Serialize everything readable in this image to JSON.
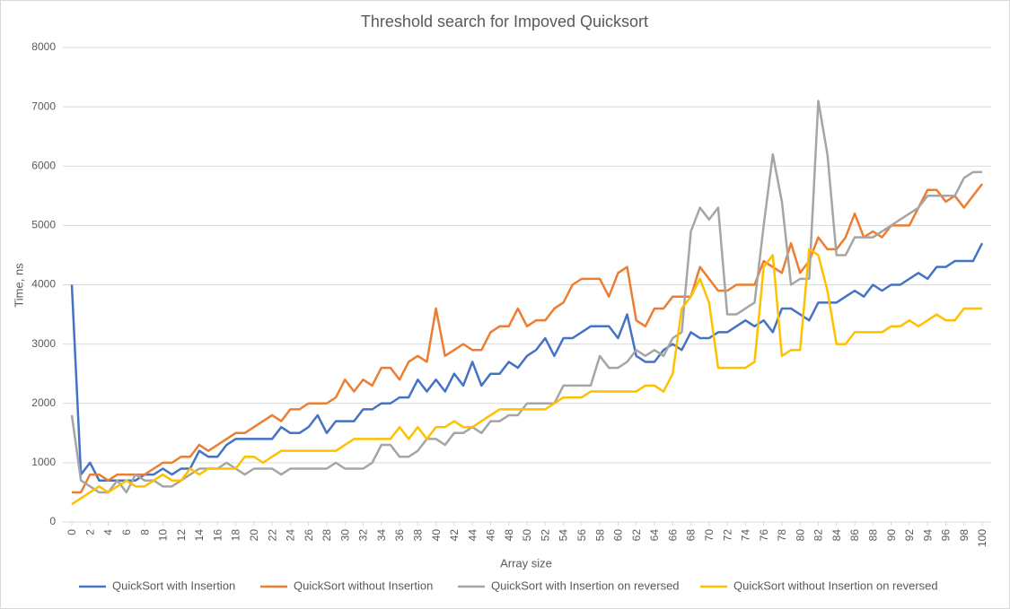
{
  "chart_data": {
    "type": "line",
    "title": "Threshold search for Impoved Quicksort",
    "x_label": "Array size",
    "y_label": "Time, ns",
    "x": [
      0,
      1,
      2,
      3,
      4,
      5,
      6,
      7,
      8,
      9,
      10,
      11,
      12,
      13,
      14,
      15,
      16,
      17,
      18,
      19,
      20,
      21,
      22,
      23,
      24,
      25,
      26,
      27,
      28,
      29,
      30,
      31,
      32,
      33,
      34,
      35,
      36,
      37,
      38,
      39,
      40,
      41,
      42,
      43,
      44,
      45,
      46,
      47,
      48,
      49,
      50,
      51,
      52,
      53,
      54,
      55,
      56,
      57,
      58,
      59,
      60,
      61,
      62,
      63,
      64,
      65,
      66,
      67,
      68,
      69,
      70,
      71,
      72,
      73,
      74,
      75,
      76,
      77,
      78,
      79,
      80,
      81,
      82,
      83,
      84,
      85,
      86,
      87,
      88,
      89,
      90,
      91,
      92,
      93,
      94,
      95,
      96,
      97,
      98,
      99,
      100
    ],
    "xlim": [
      0,
      100
    ],
    "xticks": [
      0,
      2,
      4,
      6,
      8,
      10,
      12,
      14,
      16,
      18,
      20,
      22,
      24,
      26,
      28,
      30,
      32,
      34,
      36,
      38,
      40,
      42,
      44,
      46,
      48,
      50,
      52,
      54,
      56,
      58,
      60,
      62,
      64,
      66,
      68,
      70,
      72,
      74,
      76,
      78,
      80,
      82,
      84,
      86,
      88,
      90,
      92,
      94,
      96,
      98,
      100
    ],
    "ylim": [
      0,
      8000
    ],
    "yticks": [
      0,
      1000,
      2000,
      3000,
      4000,
      5000,
      6000,
      7000,
      8000
    ],
    "grid": true,
    "legend": "bottom",
    "series": [
      {
        "name": "QuickSort with Insertion",
        "color": "#4472c4",
        "values": [
          4000,
          800,
          1000,
          700,
          700,
          700,
          700,
          700,
          800,
          800,
          900,
          800,
          900,
          900,
          1200,
          1100,
          1100,
          1300,
          1400,
          1400,
          1400,
          1400,
          1400,
          1600,
          1500,
          1500,
          1600,
          1800,
          1500,
          1700,
          1700,
          1700,
          1900,
          1900,
          2000,
          2000,
          2100,
          2100,
          2400,
          2200,
          2400,
          2200,
          2500,
          2300,
          2700,
          2300,
          2500,
          2500,
          2700,
          2600,
          2800,
          2900,
          3100,
          2800,
          3100,
          3100,
          3200,
          3300,
          3300,
          3300,
          3100,
          3500,
          2800,
          2700,
          2700,
          2900,
          3000,
          2900,
          3200,
          3100,
          3100,
          3200,
          3200,
          3300,
          3400,
          3300,
          3400,
          3200,
          3600,
          3600,
          3500,
          3400,
          3700,
          3700,
          3700,
          3800,
          3900,
          3800,
          4000,
          3900,
          4000,
          4000,
          4100,
          4200,
          4100,
          4300,
          4300,
          4400,
          4400,
          4400,
          4700
        ]
      },
      {
        "name": "QuickSort without Insertion",
        "color": "#ed7d31",
        "values": [
          500,
          500,
          800,
          800,
          700,
          800,
          800,
          800,
          800,
          900,
          1000,
          1000,
          1100,
          1100,
          1300,
          1200,
          1300,
          1400,
          1500,
          1500,
          1600,
          1700,
          1800,
          1700,
          1900,
          1900,
          2000,
          2000,
          2000,
          2100,
          2400,
          2200,
          2400,
          2300,
          2600,
          2600,
          2400,
          2700,
          2800,
          2700,
          3600,
          2800,
          2900,
          3000,
          2900,
          2900,
          3200,
          3300,
          3300,
          3600,
          3300,
          3400,
          3400,
          3600,
          3700,
          4000,
          4100,
          4100,
          4100,
          3800,
          4200,
          4300,
          3400,
          3300,
          3600,
          3600,
          3800,
          3800,
          3800,
          4300,
          4100,
          3900,
          3900,
          4000,
          4000,
          4000,
          4400,
          4300,
          4200,
          4700,
          4200,
          4400,
          4800,
          4600,
          4600,
          4800,
          5200,
          4800,
          4900,
          4800,
          5000,
          5000,
          5000,
          5300,
          5600,
          5600,
          5400,
          5500,
          5300,
          5500,
          5700
        ]
      },
      {
        "name": "QuickSort with Insertion on reversed",
        "color": "#a5a5a5",
        "values": [
          1800,
          700,
          600,
          500,
          500,
          700,
          500,
          800,
          700,
          700,
          600,
          600,
          700,
          800,
          900,
          900,
          900,
          1000,
          900,
          800,
          900,
          900,
          900,
          800,
          900,
          900,
          900,
          900,
          900,
          1000,
          900,
          900,
          900,
          1000,
          1300,
          1300,
          1100,
          1100,
          1200,
          1400,
          1400,
          1300,
          1500,
          1500,
          1600,
          1500,
          1700,
          1700,
          1800,
          1800,
          2000,
          2000,
          2000,
          2000,
          2300,
          2300,
          2300,
          2300,
          2800,
          2600,
          2600,
          2700,
          2900,
          2800,
          2900,
          2800,
          3100,
          3200,
          4900,
          5300,
          5100,
          5300,
          3500,
          3500,
          3600,
          3700,
          5000,
          6200,
          5400,
          4000,
          4100,
          4100,
          7100,
          6200,
          4500,
          4500,
          4800,
          4800,
          4800,
          4900,
          5000,
          5100,
          5200,
          5300,
          5500,
          5500,
          5500,
          5500,
          5800,
          5900,
          5900
        ]
      },
      {
        "name": "QuickSort without Insertion on reversed",
        "color": "#ffc000",
        "values": [
          300,
          400,
          500,
          600,
          500,
          600,
          700,
          600,
          600,
          700,
          800,
          700,
          700,
          900,
          800,
          900,
          900,
          900,
          900,
          1100,
          1100,
          1000,
          1100,
          1200,
          1200,
          1200,
          1200,
          1200,
          1200,
          1200,
          1300,
          1400,
          1400,
          1400,
          1400,
          1400,
          1600,
          1400,
          1600,
          1400,
          1600,
          1600,
          1700,
          1600,
          1600,
          1700,
          1800,
          1900,
          1900,
          1900,
          1900,
          1900,
          1900,
          2000,
          2100,
          2100,
          2100,
          2200,
          2200,
          2200,
          2200,
          2200,
          2200,
          2300,
          2300,
          2200,
          2500,
          3600,
          3800,
          4100,
          3700,
          2600,
          2600,
          2600,
          2600,
          2700,
          4300,
          4500,
          2800,
          2900,
          2900,
          4600,
          4500,
          3900,
          3000,
          3000,
          3200,
          3200,
          3200,
          3200,
          3300,
          3300,
          3400,
          3300,
          3400,
          3500,
          3400,
          3400,
          3600,
          3600,
          3600
        ]
      }
    ]
  }
}
